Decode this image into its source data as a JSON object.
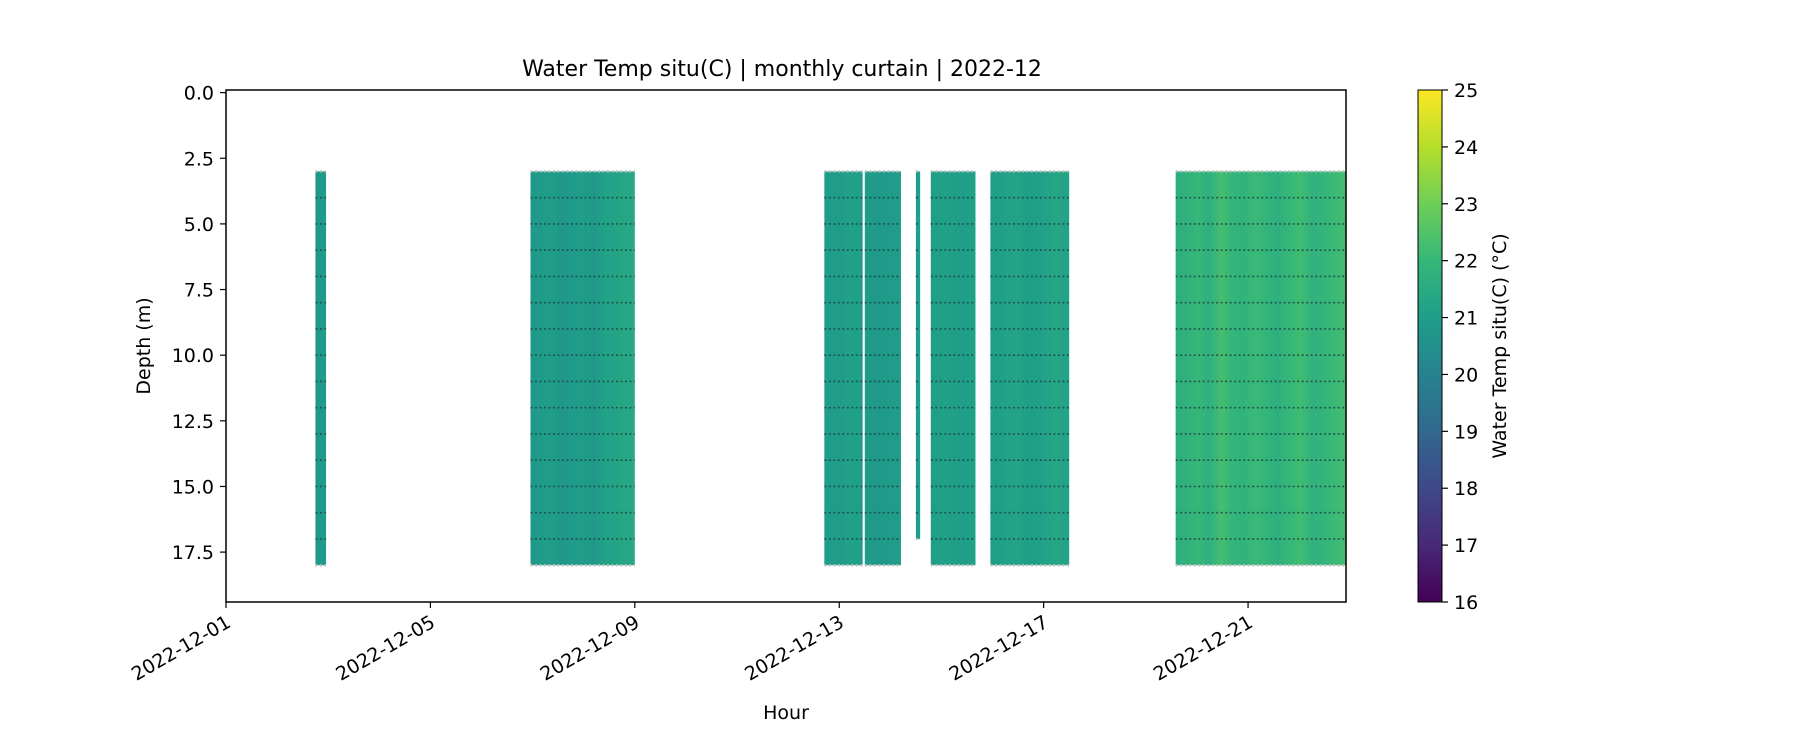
{
  "chart_data": {
    "type": "heatmap",
    "title": "Water Temp situ(C) | monthly curtain | 2022-12",
    "xlabel": "Hour",
    "ylabel": "Depth (m)",
    "colorbar_label": "Water Temp situ(C) (°C)",
    "colormap": "viridis",
    "colormap_stops": [
      "#440154",
      "#482878",
      "#3e4989",
      "#31688e",
      "#26828e",
      "#1f9e89",
      "#35b779",
      "#6ece58",
      "#b5de2b",
      "#fde725"
    ],
    "color_range": [
      16,
      25
    ],
    "colorbar_ticks": [
      "16",
      "17",
      "18",
      "19",
      "20",
      "21",
      "22",
      "23",
      "24",
      "25"
    ],
    "x_range": [
      "2022-12-01",
      "2022-12-22T22:00"
    ],
    "x_ticks": [
      "2022-12-01",
      "2022-12-05",
      "2022-12-09",
      "2022-12-13",
      "2022-12-17",
      "2022-12-21"
    ],
    "y_range": [
      19.4,
      -0.1
    ],
    "y_ticks": [
      "0.0",
      "2.5",
      "5.0",
      "7.5",
      "10.0",
      "12.5",
      "15.0",
      "17.5"
    ],
    "depth_levels": [
      3,
      4,
      5,
      6,
      7,
      8,
      9,
      10,
      11,
      12,
      13,
      14,
      15,
      16,
      17,
      18
    ],
    "segments": [
      {
        "start": "2022-12-02T18:00",
        "end": "2022-12-02T23:00",
        "depth_top": 3,
        "depth_bottom": 18,
        "temps": [
          20.8,
          20.9
        ]
      },
      {
        "start": "2022-12-06T23:00",
        "end": "2022-12-09T00:00",
        "depth_top": 3,
        "depth_bottom": 18,
        "temps": [
          20.8,
          20.9,
          21.0,
          20.7,
          20.9,
          21.0,
          20.8,
          21.1,
          21.2,
          21.3,
          21.4
        ]
      },
      {
        "start": "2022-12-12T17:00",
        "end": "2022-12-13T11:00",
        "depth_top": 3,
        "depth_bottom": 18,
        "temps": [
          21.0,
          20.9,
          21.1,
          21.0
        ]
      },
      {
        "start": "2022-12-13T12:00",
        "end": "2022-12-14T05:00",
        "depth_top": 3,
        "depth_bottom": 18,
        "temps": [
          21.0,
          20.8,
          20.9,
          21.0
        ]
      },
      {
        "start": "2022-12-14T12:00",
        "end": "2022-12-14T14:00",
        "depth_top": 3,
        "depth_bottom": 17,
        "temps": [
          21.0
        ]
      },
      {
        "start": "2022-12-14T19:00",
        "end": "2022-12-15T16:00",
        "depth_top": 3,
        "depth_bottom": 18,
        "temps": [
          21.0,
          21.1,
          21.0,
          21.1
        ]
      },
      {
        "start": "2022-12-15T23:00",
        "end": "2022-12-17T12:00",
        "depth_top": 3,
        "depth_bottom": 18,
        "temps": [
          21.0,
          21.1,
          21.2,
          21.0,
          21.1,
          21.3,
          21.2
        ]
      },
      {
        "start": "2022-12-19T14:00",
        "end": "2022-12-22T22:00",
        "depth_top": 3,
        "depth_bottom": 18,
        "temps": [
          21.6,
          21.8,
          22.0,
          21.7,
          22.3,
          21.9,
          21.8,
          22.1,
          21.9,
          21.7,
          22.0,
          22.2,
          21.8,
          21.9,
          22.1,
          22.3
        ]
      }
    ],
    "grid": false,
    "legend": "colorbar right"
  }
}
